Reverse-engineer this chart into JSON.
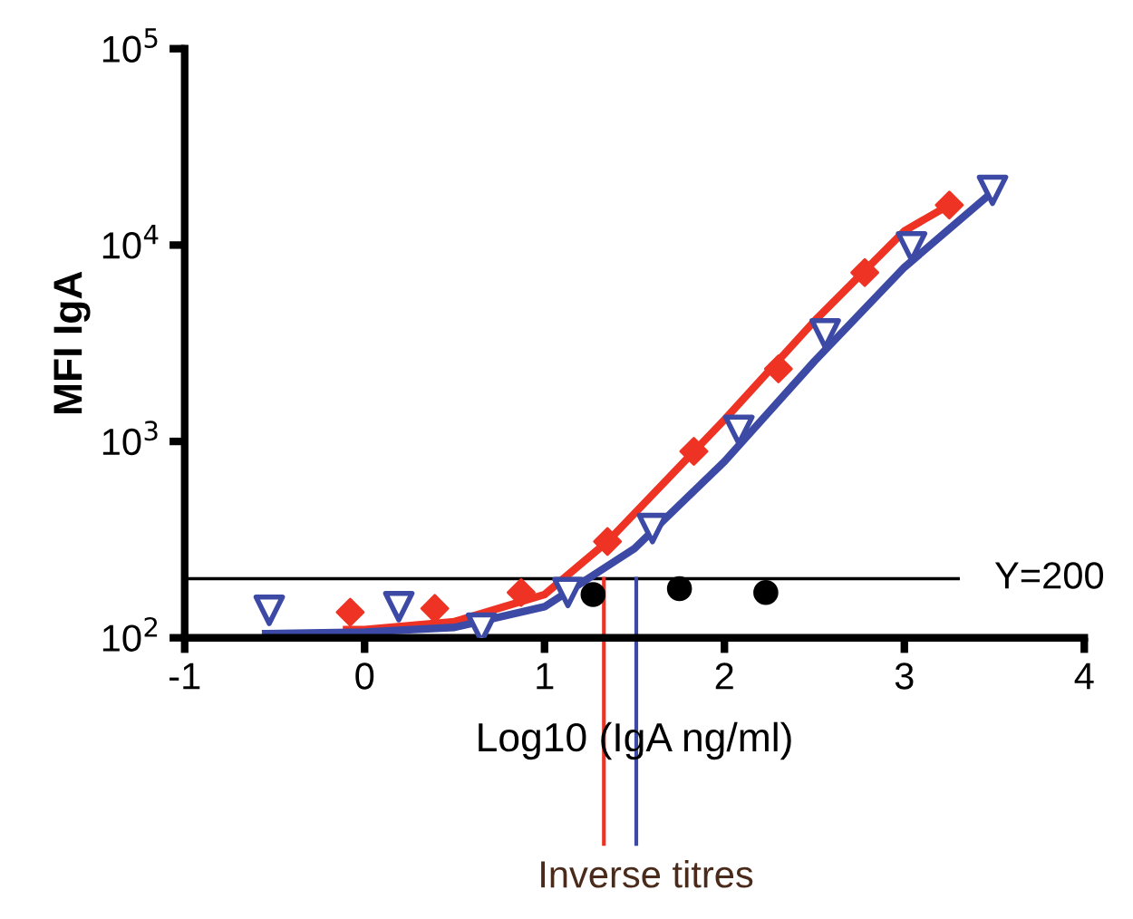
{
  "chart_data": {
    "type": "scatter",
    "xlabel": "Log10 (IgA ng/ml)",
    "ylabel": "MFI IgA",
    "log": "y",
    "xlim": [
      -1,
      4
    ],
    "xticks": [
      -1,
      0,
      1,
      2,
      3,
      4
    ],
    "ylim": [
      100,
      100000
    ],
    "yticks": [
      {
        "value": 100,
        "label": "10$^{2}$"
      },
      {
        "value": 1000,
        "label": "10$^{3}$"
      },
      {
        "value": 10000,
        "label": "10$^{4}$"
      },
      {
        "value": 100000,
        "label": "10$^{5}$"
      }
    ],
    "grid": false,
    "legend": false,
    "series": [
      {
        "type": "line",
        "color": "#ee3324",
        "marker": "none",
        "x": [
          -0.1,
          0,
          0.5,
          1,
          1.35,
          2,
          2.5,
          3,
          3.25
        ],
        "values": [
          110,
          110,
          121,
          166,
          309,
          1290,
          4100,
          11800,
          16000
        ]
      },
      {
        "type": "line",
        "color": "#3c4aa5",
        "marker": "none",
        "x": [
          -0.55,
          0,
          0.5,
          1,
          1.5,
          2,
          2.5,
          3,
          3.5
        ],
        "values": [
          105,
          107,
          113,
          144,
          285,
          790,
          2560,
          7700,
          19000
        ]
      },
      {
        "color": "#ee3324",
        "marker": "diamond",
        "x": [
          -0.08,
          0.39,
          0.87,
          1.35,
          1.83,
          2.3,
          2.78,
          3.25
        ],
        "values": [
          135,
          141,
          170,
          309,
          890,
          2340,
          7240,
          16000
        ]
      },
      {
        "color": "#3c4aa5",
        "marker": "triangle",
        "x": [
          -0.53,
          0.19,
          0.65,
          1.13,
          1.6,
          2.08,
          2.56,
          3.04,
          3.49
        ],
        "values": [
          138,
          144,
          112,
          170,
          360,
          1140,
          3530,
          9800,
          19000
        ]
      },
      {
        "color": "#000000",
        "marker": "circle",
        "x": [
          1.27,
          1.75,
          2.23
        ],
        "values": [
          166,
          178,
          170
        ]
      }
    ],
    "ref_lines": [
      {
        "axis": "y",
        "value": 200,
        "label": "Y=200",
        "color": "#000000"
      },
      {
        "axis": "x",
        "value": 1.33,
        "color": "#ee3324"
      },
      {
        "axis": "x",
        "value": 1.51,
        "color": "#3c4aa5"
      }
    ],
    "annotations": [
      "Inverse titres"
    ]
  }
}
